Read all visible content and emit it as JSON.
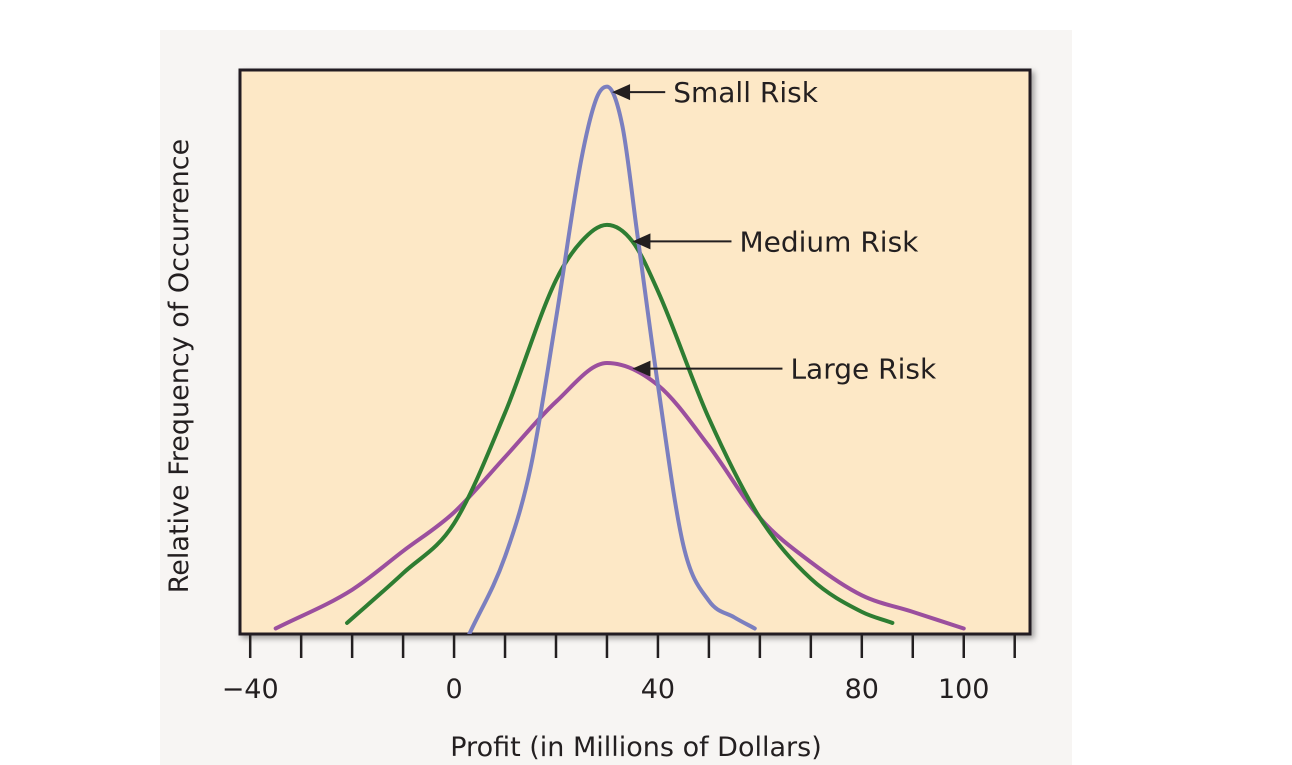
{
  "chart_data": {
    "type": "line",
    "title": "",
    "xlabel": "Profit (in Millions of Dollars)",
    "ylabel": "Relative Frequency of Occurrence",
    "xlim": [
      -42,
      113
    ],
    "ylim": [
      0,
      1.02
    ],
    "x_ticks": [
      -40,
      -30,
      -20,
      -10,
      0,
      10,
      20,
      30,
      40,
      50,
      60,
      70,
      80,
      90,
      100,
      110
    ],
    "x_tick_labels": [
      {
        "value": -40,
        "label": "−40"
      },
      {
        "value": 0,
        "label": "0"
      },
      {
        "value": 40,
        "label": "40"
      },
      {
        "value": 80,
        "label": "80"
      },
      {
        "value": 100,
        "label": "100"
      }
    ],
    "grid": false,
    "legend": "none",
    "series": [
      {
        "name": "Small Risk",
        "color": "#7b7fbf",
        "x": [
          3,
          10,
          15,
          20,
          25,
          28,
          30,
          33,
          36,
          40,
          45,
          50,
          55,
          59
        ],
        "values": [
          0.0,
          0.14,
          0.3,
          0.57,
          0.86,
          0.97,
          0.99,
          0.92,
          0.72,
          0.45,
          0.16,
          0.06,
          0.03,
          0.01
        ]
      },
      {
        "name": "Medium Risk",
        "color": "#2e7d32",
        "x": [
          -21,
          -10,
          0,
          10,
          20,
          25,
          30,
          35,
          40,
          50,
          60,
          70,
          80,
          86
        ],
        "values": [
          0.02,
          0.11,
          0.2,
          0.4,
          0.64,
          0.71,
          0.74,
          0.71,
          0.62,
          0.39,
          0.21,
          0.1,
          0.04,
          0.02
        ]
      },
      {
        "name": "Large Risk",
        "color": "#9b4f9e",
        "x": [
          -35,
          -20,
          -10,
          0,
          10,
          20,
          30,
          40,
          50,
          60,
          70,
          80,
          90,
          100
        ],
        "values": [
          0.01,
          0.08,
          0.15,
          0.22,
          0.32,
          0.42,
          0.49,
          0.45,
          0.34,
          0.21,
          0.13,
          0.07,
          0.04,
          0.01
        ]
      }
    ],
    "annotations": [
      {
        "text": "Small Risk",
        "target_series": "Small Risk",
        "point": [
          31,
          0.98
        ],
        "text_at": [
          43,
          0.94
        ]
      },
      {
        "text": "Medium Risk",
        "target_series": "Medium Risk",
        "point": [
          35,
          0.71
        ],
        "text_at": [
          56,
          0.71
        ]
      },
      {
        "text": "Large Risk",
        "target_series": "Large Risk",
        "point": [
          35,
          0.48
        ],
        "text_at": [
          66,
          0.48
        ]
      }
    ],
    "colors": {
      "plot_background": "#fde8c6",
      "axis_frame": "#231f20",
      "annotation_arrow": "#231f20"
    }
  }
}
